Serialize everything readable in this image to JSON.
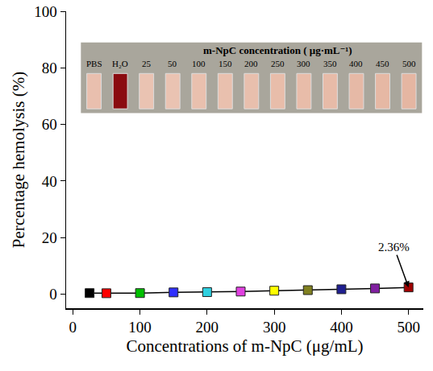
{
  "chart_data": {
    "type": "line",
    "x": [
      25,
      50,
      100,
      150,
      200,
      250,
      300,
      350,
      400,
      450,
      500
    ],
    "values": [
      0.35,
      0.3,
      0.35,
      0.6,
      0.7,
      0.9,
      1.2,
      1.4,
      1.7,
      2.0,
      2.36
    ],
    "colors": [
      "#000000",
      "#ff0000",
      "#00c000",
      "#3030ff",
      "#30d0e0",
      "#e040e0",
      "#ffff00",
      "#808020",
      "#202090",
      "#8020a0",
      "#a00000"
    ],
    "color": "#000000",
    "marker": "square",
    "xlabel": "Concentrations of m-NpC (μg/mL)",
    "ylabel": "Percentage hemolysis (%)",
    "xlim": [
      -10,
      522
    ],
    "ylim": [
      -5,
      100
    ],
    "xticks": [
      0,
      100,
      200,
      300,
      400,
      500
    ],
    "yticks": [
      0,
      20,
      40,
      60,
      80,
      100
    ],
    "grid": false,
    "annotations": [
      {
        "text": "2.36%",
        "x": 500,
        "y": 2.36
      }
    ],
    "inset": {
      "title": "m-NpC concentration ( μg·mL⁻¹)",
      "labels": [
        "PBS",
        "H₂O",
        "25",
        "50",
        "100",
        "150",
        "200",
        "250",
        "300",
        "350",
        "400",
        "450",
        "500"
      ],
      "colors": [
        "#e9bfae",
        "#8a0b10",
        "#eac3b2",
        "#eac3b2",
        "#e9c0ae",
        "#e9c0ae",
        "#e8bfad",
        "#e8bdaa",
        "#e8bca9",
        "#e7bba8",
        "#e6b9a6",
        "#e6b8a4",
        "#e5b6a2"
      ]
    }
  }
}
